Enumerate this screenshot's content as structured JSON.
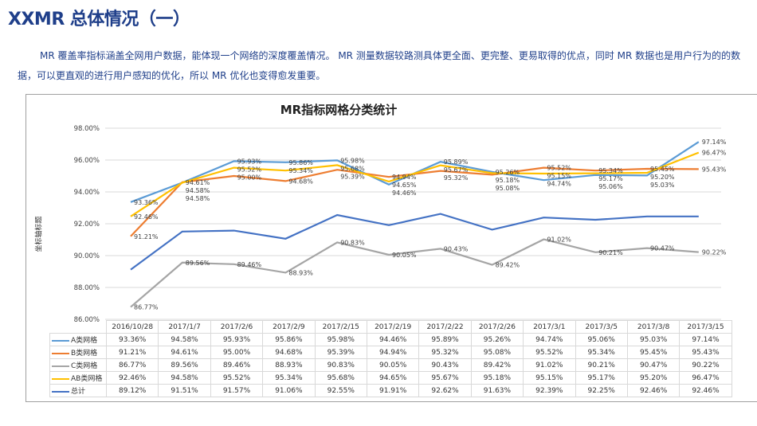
{
  "page": {
    "title": "XXMR 总体情况（一）",
    "paragraph": "MR 覆盖率指标涵盖全网用户数据，能体现一个网络的深度覆盖情况。 MR 测量数据较路测具体更全面、更完整、更易取得的优点，同时 MR 数据也是用户行为的的数据，可以更直观的进行用户感知的优化，所以 MR 优化也变得愈发重要。"
  },
  "chart_data": {
    "type": "line",
    "title": "MR指标网格分类统计",
    "ylabel": "坐标轴标题",
    "xlabel": "",
    "ylim": [
      86,
      98
    ],
    "y_ticks": [
      "86.00%",
      "88.00%",
      "90.00%",
      "92.00%",
      "94.00%",
      "96.00%",
      "98.00%"
    ],
    "grid": true,
    "legend": "data-table",
    "categories": [
      "2016/10/28",
      "2017/1/7",
      "2017/2/6",
      "2017/2/9",
      "2017/2/15",
      "2017/2/19",
      "2017/2/22",
      "2017/2/26",
      "2017/3/1",
      "2017/3/5",
      "2017/3/8",
      "2017/3/15"
    ],
    "series": [
      {
        "name": "A类网格",
        "color": "#5b9bd5",
        "labels": true,
        "values": [
          93.36,
          94.58,
          95.93,
          95.86,
          95.98,
          94.46,
          95.89,
          95.26,
          94.74,
          95.06,
          95.03,
          97.14
        ]
      },
      {
        "name": "B类网格",
        "color": "#ed7d31",
        "labels": true,
        "values": [
          91.21,
          94.61,
          95.0,
          94.68,
          95.39,
          94.94,
          95.32,
          95.08,
          95.52,
          95.34,
          95.45,
          95.43
        ]
      },
      {
        "name": "C类网格",
        "color": "#a5a5a5",
        "labels": true,
        "values": [
          86.77,
          89.56,
          89.46,
          88.93,
          90.83,
          90.05,
          90.43,
          89.42,
          91.02,
          90.21,
          90.47,
          90.22
        ]
      },
      {
        "name": "AB类网格",
        "color": "#ffc000",
        "labels": true,
        "values": [
          92.46,
          94.58,
          95.52,
          95.34,
          95.68,
          94.65,
          95.67,
          95.18,
          95.15,
          95.17,
          95.2,
          96.47
        ]
      },
      {
        "name": "总计",
        "color": "#4472c4",
        "labels": false,
        "values": [
          89.12,
          91.51,
          91.57,
          91.06,
          92.55,
          91.91,
          92.62,
          91.63,
          92.39,
          92.25,
          92.46,
          92.46
        ]
      }
    ]
  }
}
